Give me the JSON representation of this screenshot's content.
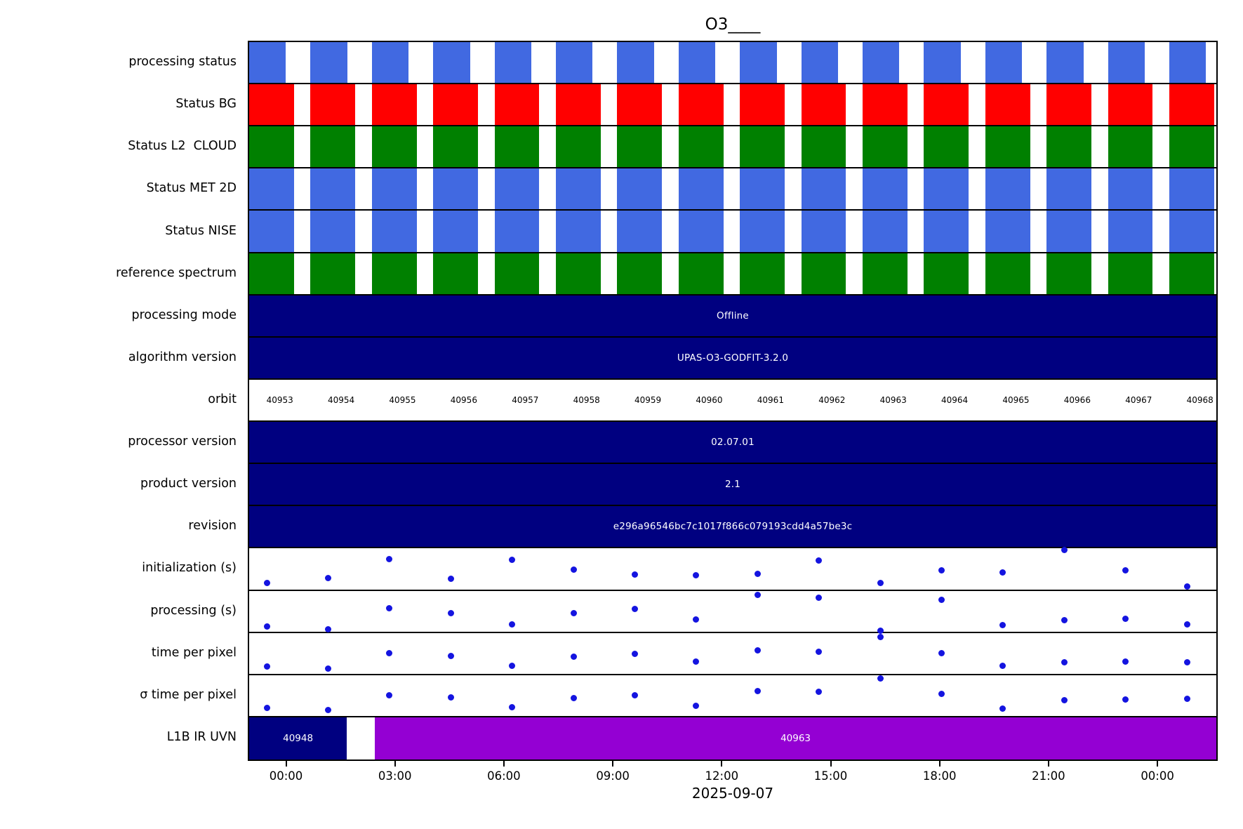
{
  "title": "O3____",
  "chart_data": {
    "type": "timeline-status",
    "title": "O3____",
    "x_axis": {
      "tick_labels": [
        "00:00",
        "03:00",
        "06:00",
        "09:00",
        "12:00",
        "15:00",
        "18:00",
        "21:00",
        "00:00"
      ],
      "date_label": "2025-09-07",
      "grid": false
    },
    "orbit_numbers": [
      "40953",
      "40954",
      "40955",
      "40956",
      "40957",
      "40958",
      "40959",
      "40960",
      "40961",
      "40962",
      "40963",
      "40964",
      "40965",
      "40966",
      "40967",
      "40968"
    ],
    "colors": {
      "royalblue": "#4169e1",
      "red": "#ff0000",
      "green": "#008000",
      "navy": "#000080",
      "purple": "#9400d3",
      "dot_blue": "#1414e0",
      "axis": "#000000",
      "bar_text": "#ffffff"
    },
    "rows": [
      {
        "label": "processing status",
        "type": "blocks",
        "color_key": "royalblue",
        "fill": 0.6
      },
      {
        "label": "Status BG",
        "type": "blocks",
        "color_key": "red",
        "fill": 0.73
      },
      {
        "label": "Status L2  CLOUD",
        "type": "blocks",
        "color_key": "green",
        "fill": 0.73
      },
      {
        "label": "Status MET 2D",
        "type": "blocks",
        "color_key": "royalblue",
        "fill": 0.73
      },
      {
        "label": "Status NISE",
        "type": "blocks",
        "color_key": "royalblue",
        "fill": 0.73
      },
      {
        "label": "reference spectrum",
        "type": "blocks",
        "color_key": "green",
        "fill": 0.73
      },
      {
        "label": "processing mode",
        "type": "bar",
        "value": "Offline",
        "color_key": "navy"
      },
      {
        "label": "algorithm version",
        "type": "bar",
        "value": "UPAS-O3-GODFIT-3.2.0",
        "color_key": "navy"
      },
      {
        "label": "orbit",
        "type": "orbit-numbers"
      },
      {
        "label": "processor version",
        "type": "bar",
        "value": "02.07.01",
        "color_key": "navy"
      },
      {
        "label": "product version",
        "type": "bar",
        "value": "2.1",
        "color_key": "navy"
      },
      {
        "label": "revision",
        "type": "bar",
        "value": "e296a96546bc7c1017f866c079193cdd4a57be3c",
        "color_key": "navy"
      },
      {
        "label": "initialization (s)",
        "type": "scatter",
        "relative_y": [
          0.82,
          0.7,
          0.25,
          0.72,
          0.27,
          0.5,
          0.62,
          0.63,
          0.6,
          0.28,
          0.82,
          0.52,
          0.56,
          0.03,
          0.52,
          0.9
        ]
      },
      {
        "label": "processing (s)",
        "type": "scatter",
        "relative_y": [
          0.85,
          0.92,
          0.42,
          0.54,
          0.8,
          0.54,
          0.44,
          0.68,
          0.1,
          0.16,
          0.95,
          0.21,
          0.82,
          0.7,
          0.66,
          0.79
        ]
      },
      {
        "label": "time per pixel",
        "type": "scatter",
        "relative_y": [
          0.8,
          0.84,
          0.48,
          0.54,
          0.78,
          0.56,
          0.5,
          0.68,
          0.42,
          0.45,
          0.1,
          0.48,
          0.78,
          0.7,
          0.68,
          0.7
        ]
      },
      {
        "label": "σ time per pixel",
        "type": "scatter",
        "relative_y": [
          0.78,
          0.82,
          0.48,
          0.52,
          0.76,
          0.54,
          0.48,
          0.72,
          0.38,
          0.4,
          0.08,
          0.44,
          0.8,
          0.6,
          0.58,
          0.56
        ]
      },
      {
        "label": "L1B IR UVN",
        "type": "segments",
        "segments": [
          {
            "value": "40948",
            "color_key": "navy",
            "x0": 0.0,
            "x1": 0.101
          },
          {
            "value": "40963",
            "color_key": "purple",
            "x0": 0.13,
            "x1": 1.0
          }
        ]
      }
    ]
  }
}
